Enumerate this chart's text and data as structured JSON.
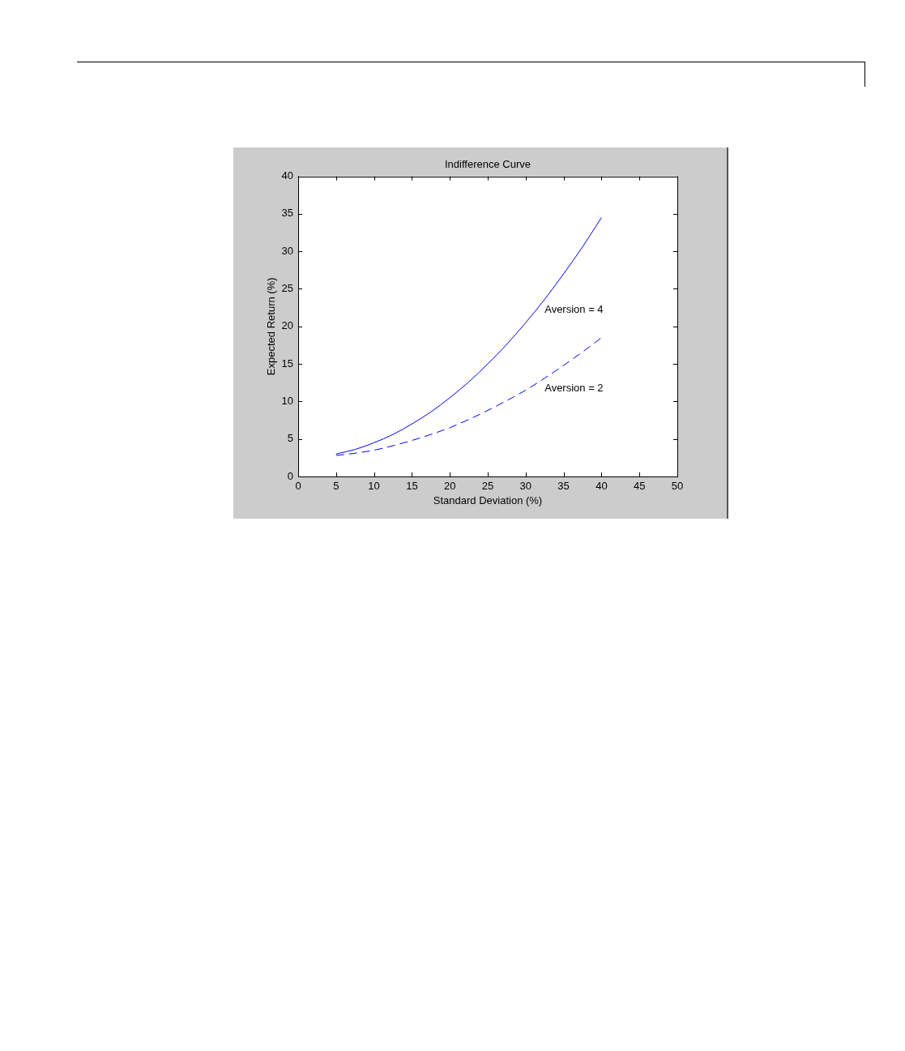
{
  "chart_data": {
    "type": "line",
    "title": "Indifference Curve",
    "xlabel": "Standard Deviation (%)",
    "ylabel": "Expected Return (%)",
    "x": [
      5,
      7.5,
      10,
      12.5,
      15,
      17.5,
      20,
      22.5,
      25,
      27.5,
      30,
      32.5,
      35,
      37.5,
      40
    ],
    "series": [
      {
        "name": "Aversion = 4",
        "color": "#0000ff",
        "line_style": "solid",
        "values": [
          3.0,
          3.6,
          4.5,
          5.6,
          7.0,
          8.6,
          10.5,
          12.6,
          15.0,
          17.6,
          20.5,
          23.6,
          27.0,
          30.6,
          34.5
        ]
      },
      {
        "name": "Aversion = 2",
        "color": "#0000ff",
        "line_style": "dashed",
        "values": [
          2.8,
          3.1,
          3.5,
          4.1,
          4.8,
          5.6,
          6.5,
          7.6,
          8.8,
          10.1,
          11.5,
          13.1,
          14.8,
          16.6,
          18.5
        ]
      }
    ],
    "xlim": [
      0,
      50
    ],
    "ylim": [
      0,
      40
    ],
    "xticks": [
      0,
      5,
      10,
      15,
      20,
      25,
      30,
      35,
      40,
      45,
      50
    ],
    "yticks": [
      0,
      5,
      10,
      15,
      20,
      25,
      30,
      35,
      40
    ]
  }
}
